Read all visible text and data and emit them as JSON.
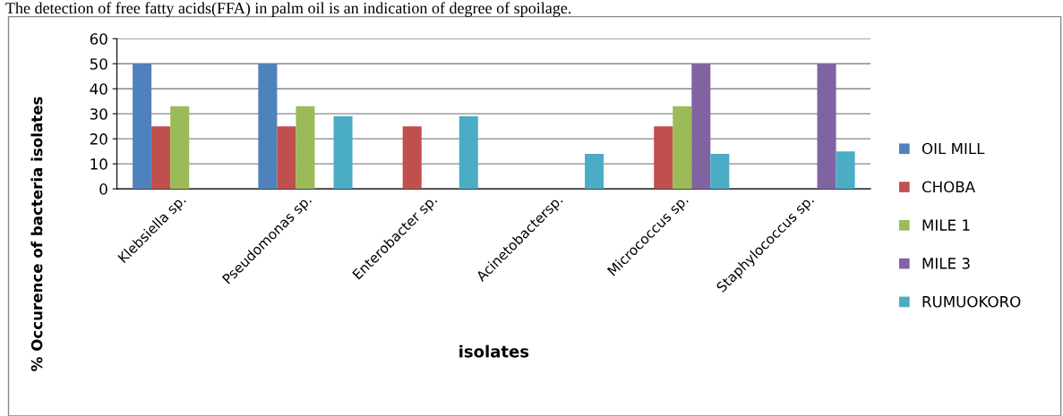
{
  "chart_data": {
    "type": "bar",
    "categories": [
      "Klebsiella sp.",
      "Pseudomonas sp.",
      "Enterobacter sp.",
      "Acinetobactersp.",
      "Micrococcus sp.",
      "Staphylococcus sp."
    ],
    "series": [
      {
        "name": "OIL MILL",
        "color": "#4f81bd",
        "values": [
          50,
          50,
          0,
          0,
          0,
          0
        ]
      },
      {
        "name": "CHOBA",
        "color": "#c0504d",
        "values": [
          25,
          25,
          25,
          0,
          25,
          0
        ]
      },
      {
        "name": "MILE 1",
        "color": "#9bbb59",
        "values": [
          33,
          33,
          0,
          0,
          33,
          0
        ]
      },
      {
        "name": "MILE 3",
        "color": "#8064a2",
        "values": [
          0,
          0,
          0,
          0,
          50,
          50
        ]
      },
      {
        "name": "RUMUOKORO",
        "color": "#4bacc6",
        "values": [
          0,
          29,
          29,
          14,
          14,
          15
        ]
      }
    ],
    "xlabel": "isolates",
    "ylabel": "% Occurence of bacteria isolates",
    "ylim": [
      0,
      60
    ],
    "yticks": [
      0,
      10,
      20,
      30,
      40,
      50,
      60
    ],
    "grid": "y",
    "legend": "right",
    "annotations": [
      "The detection of free fatty acids(FFA) in palm oil is an indication of degree of spoilage."
    ]
  }
}
